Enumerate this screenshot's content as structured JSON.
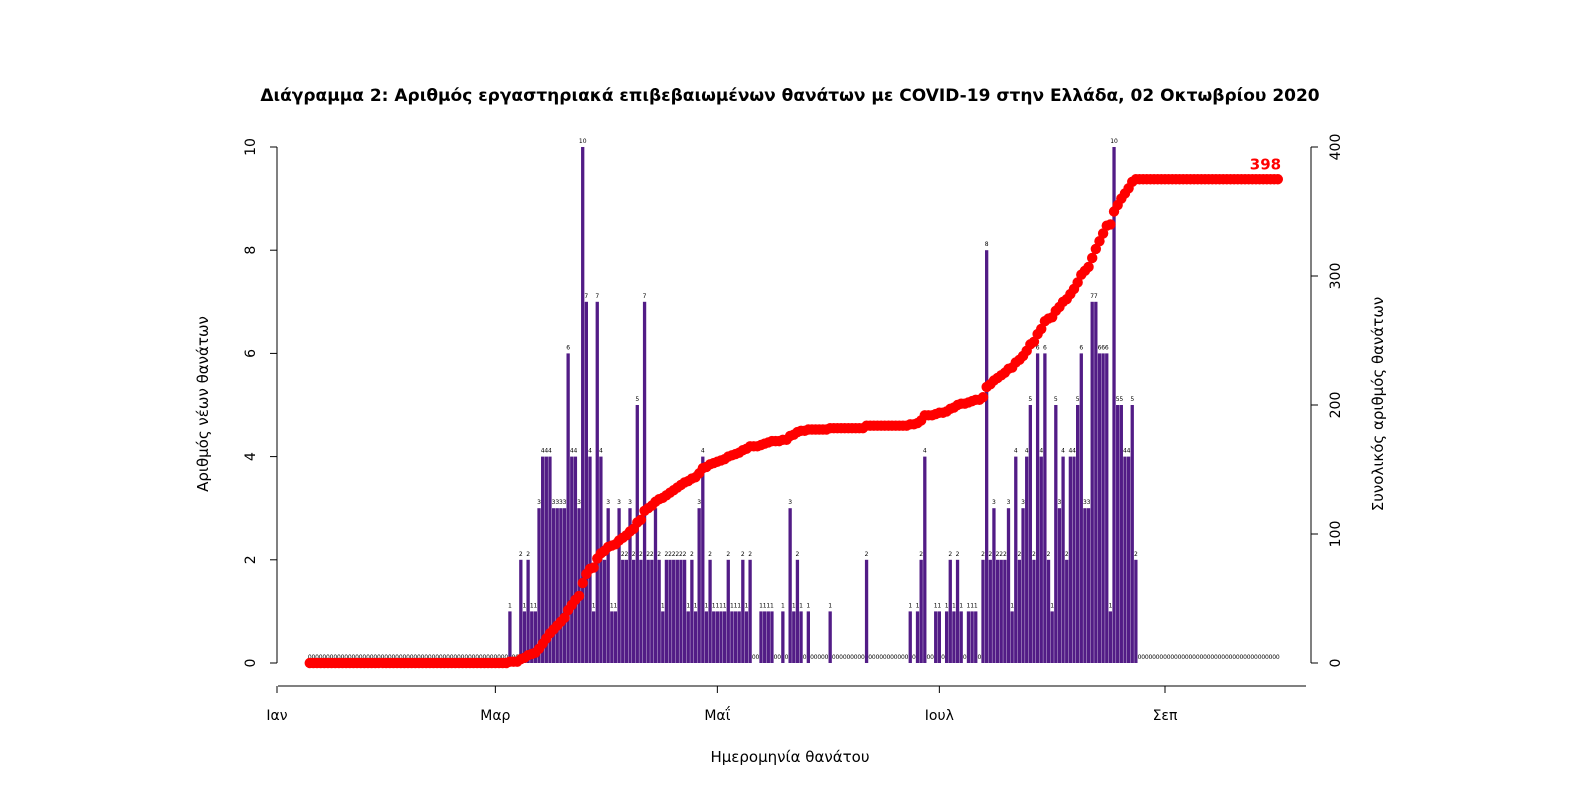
{
  "chart_data": {
    "type": "bar",
    "title": "Διάγραμμα 2: Αριθμός εργαστηριακά επιβεβαιωμένων θανάτων με COVID-19 στην Ελλάδα, 02 Οκτωβρίου 2020",
    "xlabel": "Ημερομηνία θανάτου",
    "ylabel": "Αριθμός νέων θανάτων",
    "y2label": "Συνολικός αριθμός θανάτων",
    "x_ticks": [
      {
        "label": "Ιαν",
        "day": 0
      },
      {
        "label": "Μαρ",
        "day": 60
      },
      {
        "label": "Μαΐ",
        "day": 121
      },
      {
        "label": "Ιουλ",
        "day": 182
      },
      {
        "label": "Σεπ",
        "day": 244
      }
    ],
    "ylim": [
      0,
      10
    ],
    "y_ticks": [
      0,
      2,
      4,
      6,
      8,
      10
    ],
    "y2lim": [
      0,
      400
    ],
    "y2_ticks": [
      0,
      100,
      200,
      300,
      400
    ],
    "date_range": [
      "2020-01-10",
      "2020-10-02"
    ],
    "final_total_label": "398",
    "colors": {
      "bars": "#521C86",
      "cumulative": "#FF0000"
    },
    "series": [
      {
        "name": "Αριθμός νέων θανάτων",
        "start_date": "2020-03-05",
        "values": [
          1,
          0,
          0,
          2,
          1,
          2,
          1,
          1,
          3,
          4,
          4,
          4,
          3,
          3,
          3,
          3,
          6,
          4,
          4,
          3,
          10,
          7,
          4,
          1,
          7,
          4,
          2,
          3,
          1,
          1,
          3,
          2,
          2,
          3,
          2,
          5,
          2,
          7,
          2,
          2,
          3,
          2,
          1,
          2,
          2,
          2,
          2,
          2,
          2,
          1,
          2,
          1,
          3,
          4,
          1,
          2,
          1,
          1,
          1,
          1,
          2,
          1,
          1,
          1,
          2,
          1,
          2,
          0,
          0,
          1,
          1,
          1,
          1,
          0,
          0,
          1,
          0,
          3,
          1,
          2,
          1,
          0,
          1,
          0,
          0,
          0,
          0,
          0,
          1,
          0,
          0,
          0,
          0,
          0,
          0,
          0,
          0,
          0,
          2,
          0,
          0,
          0,
          0,
          0,
          0,
          0,
          0,
          0,
          0,
          0,
          1,
          0,
          1,
          2,
          4,
          0,
          0,
          1,
          1,
          0,
          1,
          2,
          1,
          2,
          1,
          0,
          1,
          1,
          1,
          0,
          2,
          8,
          2,
          3,
          2,
          2,
          2,
          3,
          1,
          4,
          2,
          3,
          4,
          5,
          2,
          6,
          4,
          6,
          2,
          1,
          5,
          3,
          4,
          2,
          4,
          4,
          5,
          6,
          3,
          3,
          7,
          7,
          6,
          6,
          6,
          1,
          10,
          5,
          5,
          4,
          4,
          5,
          2
        ]
      },
      {
        "name": "Συνολικός αριθμός θανάτων",
        "kind": "cumulative"
      }
    ]
  }
}
